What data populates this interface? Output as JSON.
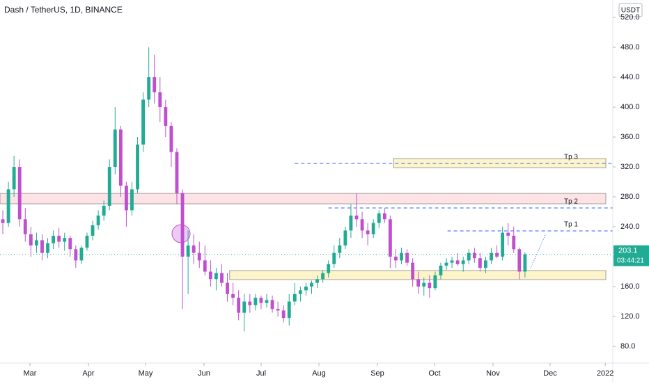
{
  "chart_data": {
    "type": "candlestick",
    "title": "Dash / TetherUS, 1D, BINANCE",
    "currency": "USDT",
    "up_color": "#22ab94",
    "down_color": "#c04fd0",
    "ylim": [
      57.7,
      543.3
    ],
    "yticks": [
      {
        "value": 80,
        "label": "80.0"
      },
      {
        "value": 120,
        "label": "120.0"
      },
      {
        "value": 160,
        "label": "160.0"
      },
      {
        "value": 200,
        "label": "200.0"
      },
      {
        "value": 240,
        "label": "240.0"
      },
      {
        "value": 280,
        "label": "280.0"
      },
      {
        "value": 320,
        "label": "320.0"
      },
      {
        "value": 360,
        "label": "360.0"
      },
      {
        "value": 400,
        "label": "400.0"
      },
      {
        "value": 440,
        "label": "440.0"
      },
      {
        "value": 480,
        "label": "480.0"
      },
      {
        "value": 520,
        "label": "520.0"
      }
    ],
    "xlim": [
      -0.5,
      107.4
    ],
    "xticks": [
      {
        "value": 4.83,
        "label": "Mar"
      },
      {
        "value": 15.25,
        "label": "Apr"
      },
      {
        "value": 25.42,
        "label": "May"
      },
      {
        "value": 35.84,
        "label": "Jun"
      },
      {
        "value": 46.01,
        "label": "Jul"
      },
      {
        "value": 56.3,
        "label": "Aug"
      },
      {
        "value": 66.72,
        "label": "Sep"
      },
      {
        "value": 76.89,
        "label": "Oct"
      },
      {
        "value": 87.3,
        "label": "Nov"
      },
      {
        "value": 97.48,
        "label": "Dec"
      },
      {
        "value": 107.3,
        "label": "2022"
      }
    ],
    "last_price": {
      "value": 203.1,
      "label": "203.1",
      "countdown": "03:44:21"
    },
    "zones": [
      {
        "ylim": [
          270.7,
          284.6
        ],
        "x_start": -0.5,
        "color": "#fde3e6",
        "border": "#9e9e9e"
      },
      {
        "ylim": [
          319,
          331.2
        ],
        "x_start": 69.6,
        "color": "#fdf5c9",
        "border": "#9e9e9e"
      },
      {
        "ylim": [
          169.3,
          181.4
        ],
        "x_start": 40.4,
        "color": "#fdf5c9",
        "border": "#9e9e9e"
      }
    ],
    "targets": [
      {
        "label": "Tp 3",
        "value": 324.7,
        "x_start": 52
      },
      {
        "label": "Tp 2",
        "value": 265.1,
        "x_start": 58
      },
      {
        "label": "Tp 1",
        "value": 234.4,
        "x_start": 79.2
      }
    ],
    "candles": [
      [
        250,
        262,
        230,
        245
      ],
      [
        245,
        300,
        240,
        290
      ],
      [
        290,
        335,
        280,
        320
      ],
      [
        320,
        330,
        240,
        250
      ],
      [
        250,
        265,
        220,
        230
      ],
      [
        230,
        240,
        200,
        215
      ],
      [
        215,
        232,
        205,
        222
      ],
      [
        222,
        230,
        195,
        205
      ],
      [
        205,
        225,
        198,
        218
      ],
      [
        218,
        235,
        210,
        228
      ],
      [
        228,
        238,
        212,
        220
      ],
      [
        220,
        232,
        208,
        225
      ],
      [
        225,
        228,
        200,
        210
      ],
      [
        210,
        215,
        185,
        195
      ],
      [
        195,
        215,
        190,
        212
      ],
      [
        212,
        232,
        208,
        228
      ],
      [
        228,
        248,
        222,
        242
      ],
      [
        242,
        262,
        236,
        255
      ],
      [
        255,
        275,
        248,
        268
      ],
      [
        268,
        330,
        262,
        320
      ],
      [
        320,
        400,
        310,
        370
      ],
      [
        370,
        375,
        280,
        295
      ],
      [
        295,
        300,
        240,
        262
      ],
      [
        262,
        300,
        255,
        290
      ],
      [
        290,
        360,
        285,
        350
      ],
      [
        350,
        420,
        340,
        410
      ],
      [
        410,
        480,
        400,
        440
      ],
      [
        440,
        470,
        405,
        420
      ],
      [
        420,
        440,
        380,
        400
      ],
      [
        400,
        410,
        360,
        375
      ],
      [
        375,
        380,
        320,
        340
      ],
      [
        340,
        345,
        270,
        285
      ],
      [
        285,
        290,
        130,
        200
      ],
      [
        200,
        235,
        150,
        215
      ],
      [
        215,
        230,
        190,
        205
      ],
      [
        205,
        220,
        185,
        195
      ],
      [
        195,
        215,
        175,
        180
      ],
      [
        180,
        195,
        160,
        170
      ],
      [
        170,
        185,
        155,
        178
      ],
      [
        178,
        190,
        160,
        165
      ],
      [
        165,
        178,
        140,
        150
      ],
      [
        150,
        165,
        135,
        145
      ],
      [
        145,
        155,
        115,
        125
      ],
      [
        125,
        150,
        100,
        140
      ],
      [
        140,
        150,
        125,
        135
      ],
      [
        135,
        150,
        128,
        145
      ],
      [
        145,
        148,
        130,
        138
      ],
      [
        138,
        150,
        132,
        142
      ],
      [
        142,
        148,
        125,
        130
      ],
      [
        130,
        140,
        120,
        128
      ],
      [
        128,
        135,
        112,
        118
      ],
      [
        118,
        150,
        108,
        140
      ],
      [
        140,
        165,
        135,
        150
      ],
      [
        150,
        160,
        140,
        155
      ],
      [
        155,
        165,
        148,
        160
      ],
      [
        160,
        168,
        150,
        165
      ],
      [
        165,
        175,
        158,
        170
      ],
      [
        170,
        182,
        165,
        178
      ],
      [
        178,
        195,
        172,
        190
      ],
      [
        190,
        215,
        185,
        205
      ],
      [
        205,
        225,
        198,
        215
      ],
      [
        215,
        240,
        210,
        235
      ],
      [
        235,
        270,
        225,
        255
      ],
      [
        255,
        285,
        240,
        250
      ],
      [
        250,
        260,
        225,
        235
      ],
      [
        235,
        245,
        215,
        230
      ],
      [
        230,
        250,
        225,
        245
      ],
      [
        245,
        262,
        238,
        258
      ],
      [
        258,
        265,
        245,
        250
      ],
      [
        250,
        255,
        185,
        200
      ],
      [
        200,
        210,
        185,
        195
      ],
      [
        195,
        212,
        190,
        205
      ],
      [
        205,
        210,
        188,
        192
      ],
      [
        192,
        198,
        160,
        170
      ],
      [
        170,
        180,
        150,
        160
      ],
      [
        160,
        172,
        148,
        165
      ],
      [
        165,
        175,
        145,
        158
      ],
      [
        158,
        180,
        155,
        175
      ],
      [
        175,
        192,
        170,
        188
      ],
      [
        188,
        198,
        182,
        192
      ],
      [
        192,
        200,
        185,
        195
      ],
      [
        195,
        205,
        188,
        190
      ],
      [
        190,
        200,
        180,
        195
      ],
      [
        195,
        210,
        190,
        205
      ],
      [
        205,
        212,
        192,
        198
      ],
      [
        198,
        205,
        180,
        185
      ],
      [
        185,
        200,
        178,
        195
      ],
      [
        195,
        212,
        190,
        205
      ],
      [
        205,
        215,
        198,
        200
      ],
      [
        200,
        240,
        195,
        232
      ],
      [
        232,
        245,
        215,
        228
      ],
      [
        228,
        240,
        205,
        210
      ],
      [
        210,
        212,
        170,
        180
      ],
      [
        180,
        206,
        172,
        203.1
      ]
    ]
  }
}
